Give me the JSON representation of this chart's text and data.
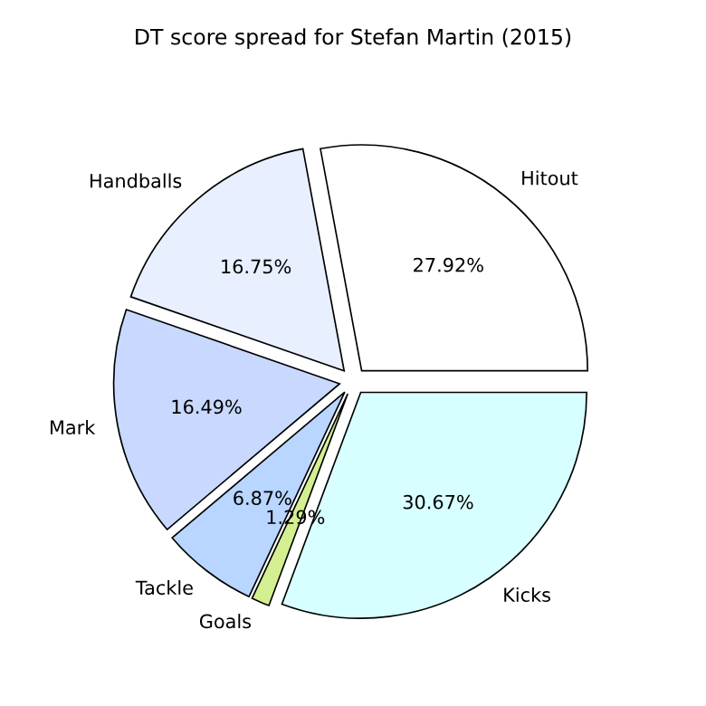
{
  "chart_data": {
    "type": "pie",
    "title": "DT score spread for Stefan Martin (2015)",
    "categories": [
      "Hitout",
      "Handballs",
      "Mark",
      "Tackle",
      "Goals",
      "Kicks"
    ],
    "values": [
      27.92,
      16.75,
      16.49,
      6.87,
      1.29,
      30.67
    ],
    "colors": [
      "#ffffff",
      "#e8efff",
      "#c8d8ff",
      "#b8d6ff",
      "#d4ef90",
      "#d8ffff"
    ],
    "value_labels": [
      "27.92%",
      "16.75%",
      "16.49%",
      "6.87%",
      "1.29%",
      "30.67%"
    ]
  }
}
